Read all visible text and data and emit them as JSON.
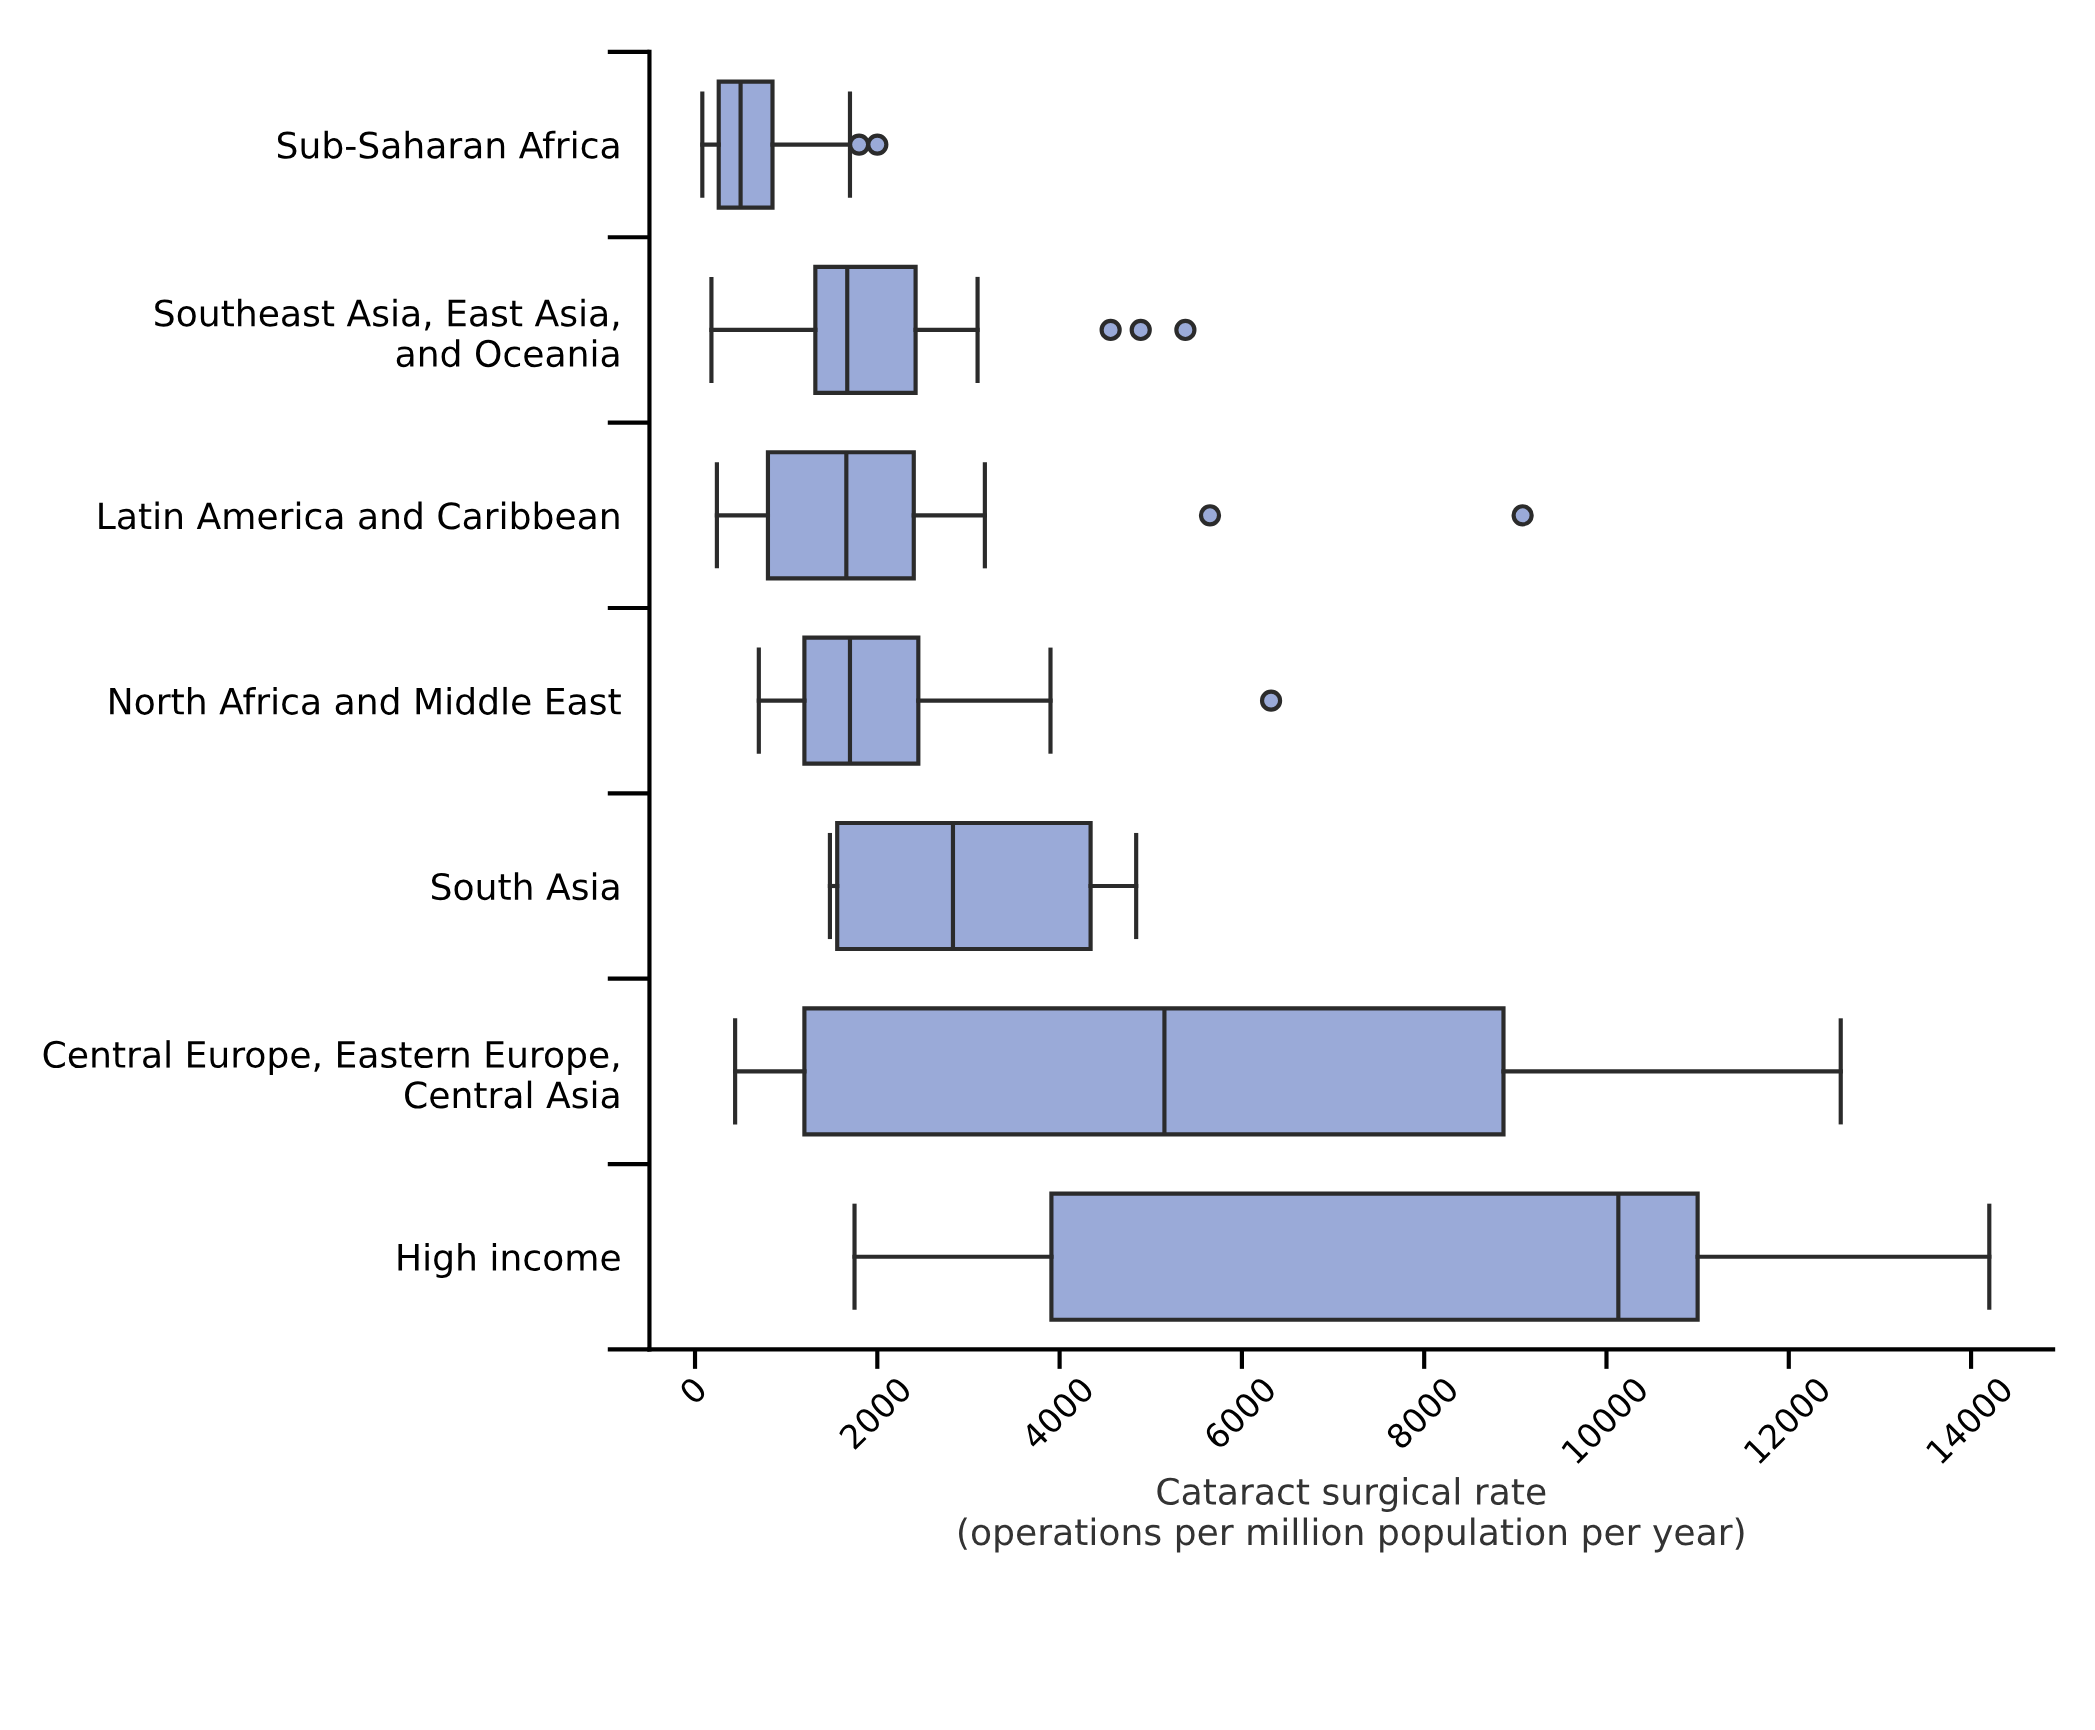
{
  "chart_data": {
    "type": "box",
    "orientation": "horizontal",
    "xlabel": "Cataract surgical rate\n(operations per million population per year)",
    "categories": [
      "Sub-Saharan Africa",
      "Southeast Asia, East Asia,\nand Oceania",
      "Latin America and Caribbean",
      "North Africa and Middle East",
      "South Asia",
      "Central Europe, Eastern Europe,\nCentral Asia",
      "High income"
    ],
    "color": "#9aaad8",
    "boxes": [
      {
        "low": 80,
        "q1": 260,
        "median": 500,
        "q3": 850,
        "high": 1700,
        "outliers": [
          1800,
          2000
        ]
      },
      {
        "low": 180,
        "q1": 1320,
        "median": 1670,
        "q3": 2420,
        "high": 3100,
        "outliers": [
          4560,
          4890,
          5380
        ]
      },
      {
        "low": 240,
        "q1": 800,
        "median": 1660,
        "q3": 2400,
        "high": 3180,
        "outliers": [
          5650,
          9080
        ]
      },
      {
        "low": 700,
        "q1": 1200,
        "median": 1700,
        "q3": 2450,
        "high": 3900,
        "outliers": [
          6320
        ]
      },
      {
        "low": 1480,
        "q1": 1560,
        "median": 2830,
        "q3": 4340,
        "high": 4840
      },
      {
        "low": 440,
        "q1": 1200,
        "median": 5150,
        "q3": 8870,
        "high": 12570
      },
      {
        "low": 1750,
        "q1": 3910,
        "median": 10130,
        "q3": 11000,
        "high": 14200
      }
    ],
    "xlim": [
      -500,
      14900
    ],
    "xticks": [
      0,
      2000,
      4000,
      6000,
      8000,
      10000,
      12000,
      14000
    ],
    "grid": false
  }
}
